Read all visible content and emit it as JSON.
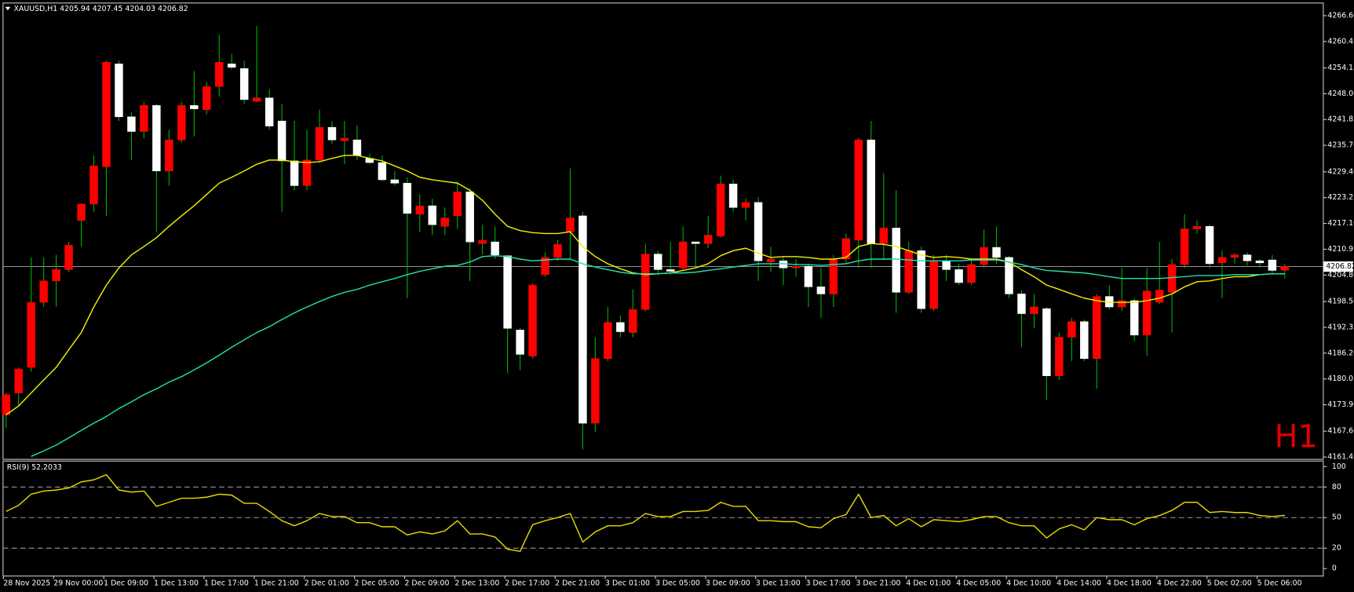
{
  "chart_data": [
    {
      "type": "candlestick",
      "title": "XAUUSD,H1  4205.94 4207.45 4204.03 4206.82",
      "timeframe_label": "H1",
      "categories": [
        "28 Nov 2025",
        null,
        null,
        null,
        "29 Nov 00:00",
        null,
        null,
        null,
        "1 Dec 09:00",
        null,
        null,
        null,
        "1 Dec 13:00",
        null,
        null,
        null,
        "1 Dec 17:00",
        null,
        null,
        null,
        "1 Dec 21:00",
        null,
        null,
        null,
        "2 Dec 01:00",
        null,
        null,
        null,
        "2 Dec 05:00",
        null,
        null,
        null,
        "2 Dec 09:00",
        null,
        null,
        null,
        "2 Dec 13:00",
        null,
        null,
        null,
        "2 Dec 17:00",
        null,
        null,
        null,
        "2 Dec 21:00",
        null,
        null,
        null,
        "3 Dec 01:00",
        null,
        null,
        null,
        "3 Dec 05:00",
        null,
        null,
        null,
        "3 Dec 09:00",
        null,
        null,
        null,
        "3 Dec 13:00",
        null,
        null,
        null,
        "3 Dec 17:00",
        null,
        null,
        null,
        "3 Dec 21:00",
        null,
        null,
        null,
        "4 Dec 01:00",
        null,
        null,
        null,
        "4 Dec 05:00",
        null,
        null,
        null,
        "4 Dec 10:00",
        null,
        null,
        null,
        "4 Dec 14:00",
        null,
        null,
        null,
        "4 Dec 18:00",
        null,
        null,
        null,
        "4 Dec 22:00",
        null,
        null,
        null,
        "5 Dec 02:00",
        null,
        null,
        null,
        "5 Dec 06:00",
        null,
        null
      ],
      "open": [
        4171.5,
        4176.7,
        4182.8,
        4198.3,
        4203.4,
        4206.1,
        4217.8,
        4221.7,
        4230.6,
        4255.1,
        4242.5,
        4239.0,
        4245.2,
        4229.6,
        4237.0,
        4245.2,
        4244.2,
        4249.7,
        4255.1,
        4254.0,
        4246.2,
        4247.0,
        4241.5,
        4232.0,
        4226.1,
        4232.2,
        4240.0,
        4236.8,
        4237.0,
        4232.6,
        4231.6,
        4227.5,
        4226.7,
        4219.3,
        4221.3,
        4216.4,
        4218.9,
        4224.6,
        4212.3,
        4212.7,
        4209.4,
        4191.7,
        4185.5,
        4204.9,
        4209.0,
        4215.1,
        4218.9,
        4169.5,
        4184.9,
        4193.5,
        4191.1,
        4196.6,
        4209.8,
        4206.1,
        4206.5,
        4212.7,
        4212.3,
        4214.1,
        4226.5,
        4220.9,
        4222.1,
        4207.9,
        4208.2,
        4206.5,
        4206.9,
        4202.0,
        4200.3,
        4208.6,
        4213.1,
        4237.0,
        4212.3,
        4216.0,
        4200.7,
        4210.6,
        4196.8,
        4208.2,
        4206.1,
        4203.0,
        4207.3,
        4211.4,
        4209.0,
        4200.3,
        4195.6,
        4196.8,
        4180.8,
        4190.0,
        4193.7,
        4184.9,
        4199.7,
        4197.2,
        4198.7,
        4190.5,
        4198.3,
        4200.7,
        4207.3,
        4215.8,
        4216.4,
        4207.7,
        4209.0,
        4209.6,
        4208.2,
        4208.4,
        4205.94
      ],
      "high": [
        4176.7,
        4182.8,
        4209.0,
        4209.0,
        4209.6,
        4212.7,
        4221.9,
        4233.3,
        4255.9,
        4255.9,
        4243.5,
        4246.0,
        4245.6,
        4239.4,
        4246.0,
        4253.4,
        4250.8,
        4262.1,
        4257.5,
        4255.9,
        4264.1,
        4249.1,
        4245.6,
        4241.5,
        4239.4,
        4244.2,
        4241.5,
        4241.5,
        4240.5,
        4233.7,
        4233.3,
        4229.6,
        4228.1,
        4224.0,
        4223.0,
        4220.9,
        4227.1,
        4225.4,
        4216.8,
        4216.4,
        4209.4,
        4192.1,
        4202.8,
        4210.2,
        4213.1,
        4230.2,
        4219.9,
        4190.0,
        4197.2,
        4195.2,
        4201.4,
        4212.3,
        4210.6,
        4212.7,
        4216.4,
        4212.7,
        4218.9,
        4228.5,
        4227.5,
        4223.0,
        4223.4,
        4211.6,
        4209.2,
        4208.6,
        4207.5,
        4206.5,
        4209.6,
        4214.7,
        4237.4,
        4241.5,
        4229.1,
        4225.0,
        4212.7,
        4211.6,
        4209.6,
        4209.6,
        4207.5,
        4208.6,
        4215.6,
        4216.4,
        4209.4,
        4201.2,
        4200.3,
        4197.2,
        4191.1,
        4194.6,
        4194.2,
        4200.3,
        4202.4,
        4206.5,
        4199.3,
        4206.5,
        4212.7,
        4208.6,
        4219.3,
        4217.8,
        4216.8,
        4210.6,
        4210.0,
        4210.2,
        4208.6,
        4209.6,
        4207.45
      ],
      "low": [
        4168.4,
        4173.6,
        4181.8,
        4197.2,
        4197.2,
        4205.5,
        4211.6,
        4219.9,
        4218.9,
        4241.5,
        4232.2,
        4237.4,
        4215.1,
        4226.1,
        4236.3,
        4237.8,
        4243.1,
        4247.3,
        4253.8,
        4245.6,
        4246.0,
        4239.4,
        4219.9,
        4225.0,
        4225.0,
        4231.6,
        4236.1,
        4231.2,
        4232.2,
        4231.2,
        4227.1,
        4226.1,
        4199.3,
        4215.1,
        4214.3,
        4214.3,
        4215.8,
        4203.4,
        4209.6,
        4208.6,
        4181.4,
        4182.2,
        4184.9,
        4204.4,
        4208.2,
        4208.6,
        4163.3,
        4167.4,
        4184.3,
        4190.0,
        4190.0,
        4196.2,
        4204.9,
        4204.9,
        4206.1,
        4206.5,
        4211.2,
        4213.7,
        4219.9,
        4217.8,
        4203.4,
        4205.5,
        4202.4,
        4204.4,
        4197.2,
        4194.6,
        4197.2,
        4207.5,
        4206.5,
        4206.5,
        4208.6,
        4195.8,
        4200.3,
        4195.8,
        4196.2,
        4203.4,
        4202.4,
        4202.4,
        4206.5,
        4207.5,
        4199.3,
        4187.6,
        4192.1,
        4175.0,
        4179.8,
        4184.3,
        4184.3,
        4177.7,
        4196.6,
        4196.2,
        4189.0,
        4185.5,
        4197.9,
        4191.1,
        4206.5,
        4214.7,
        4206.5,
        4199.3,
        4207.5,
        4207.1,
        4206.5,
        4204.9,
        4204.03
      ],
      "close": [
        4176.3,
        4182.4,
        4198.3,
        4203.4,
        4206.1,
        4211.9,
        4221.7,
        4230.8,
        4255.5,
        4242.5,
        4239.0,
        4245.2,
        4229.6,
        4237.0,
        4245.2,
        4244.4,
        4249.7,
        4255.5,
        4254.3,
        4246.6,
        4247.0,
        4240.3,
        4232.0,
        4226.1,
        4232.2,
        4240.0,
        4237.0,
        4237.4,
        4233.3,
        4231.6,
        4227.5,
        4226.7,
        4219.5,
        4221.3,
        4216.8,
        4218.4,
        4224.6,
        4212.7,
        4213.1,
        4209.6,
        4192.1,
        4185.9,
        4202.4,
        4209.0,
        4212.1,
        4218.4,
        4169.5,
        4184.9,
        4193.5,
        4191.3,
        4196.6,
        4209.8,
        4206.1,
        4205.7,
        4212.7,
        4212.3,
        4214.3,
        4226.5,
        4220.9,
        4222.1,
        4208.2,
        4208.6,
        4206.5,
        4206.9,
        4202.0,
        4200.3,
        4208.6,
        4213.5,
        4237.0,
        4212.3,
        4216.0,
        4200.7,
        4210.6,
        4196.8,
        4208.2,
        4206.1,
        4203.0,
        4207.3,
        4211.4,
        4209.0,
        4200.3,
        4195.6,
        4197.2,
        4180.8,
        4190.0,
        4193.7,
        4184.9,
        4199.7,
        4197.2,
        4198.7,
        4190.5,
        4201.0,
        4201.2,
        4207.3,
        4215.8,
        4216.4,
        4207.5,
        4209.0,
        4209.6,
        4208.2,
        4207.7,
        4205.9,
        4206.82
      ],
      "up_color": "#ff0000",
      "down_color": "#ffffff",
      "wick_color": "#00b000",
      "overlays": [
        {
          "color": "#f0f000",
          "values": [
            4171.5,
            4173.6,
            4176.7,
            4179.8,
            4182.8,
            4187.0,
            4191.1,
            4197.2,
            4202.4,
            4206.5,
            4209.6,
            4211.6,
            4213.7,
            4216.4,
            4218.9,
            4221.3,
            4224.0,
            4226.7,
            4228.1,
            4229.6,
            4231.2,
            4232.2,
            4232.2,
            4231.8,
            4231.6,
            4231.8,
            4232.6,
            4233.3,
            4233.3,
            4232.6,
            4232.0,
            4230.8,
            4229.6,
            4228.1,
            4227.5,
            4227.1,
            4226.7,
            4225.0,
            4222.6,
            4219.3,
            4216.4,
            4215.4,
            4214.9,
            4214.7,
            4214.7,
            4215.1,
            4211.6,
            4209.2,
            4207.5,
            4206.3,
            4205.3,
            4204.9,
            4205.1,
            4205.3,
            4205.9,
            4206.5,
            4207.5,
            4209.4,
            4210.6,
            4211.2,
            4210.0,
            4209.0,
            4209.2,
            4209.2,
            4209.0,
            4208.6,
            4208.6,
            4209.0,
            4211.6,
            4212.3,
            4212.1,
            4211.6,
            4210.6,
            4209.6,
            4209.0,
            4209.2,
            4209.0,
            4208.6,
            4208.6,
            4208.6,
            4207.9,
            4206.1,
            4204.4,
            4202.4,
            4201.4,
            4200.3,
            4199.3,
            4198.7,
            4198.3,
            4198.3,
            4198.3,
            4198.7,
            4199.3,
            4200.3,
            4202.0,
            4203.2,
            4203.4,
            4204.0,
            4204.4,
            4204.4,
            4204.9,
            4205.1,
            4205.1
          ]
        },
        {
          "color": "#20e0b0",
          "values": [
            null,
            null,
            4161.6,
            4162.9,
            4164.3,
            4166.0,
            4167.8,
            4169.5,
            4171.1,
            4173.0,
            4174.6,
            4176.3,
            4177.7,
            4179.3,
            4180.6,
            4182.2,
            4183.9,
            4185.7,
            4187.6,
            4189.4,
            4191.1,
            4192.5,
            4194.2,
            4195.8,
            4197.2,
            4198.5,
            4199.7,
            4200.7,
            4201.4,
            4202.4,
            4203.2,
            4204.0,
            4204.9,
            4205.7,
            4206.3,
            4206.9,
            4207.1,
            4207.9,
            4209.2,
            4209.4,
            4209.2,
            4208.6,
            4208.2,
            4208.4,
            4208.6,
            4208.6,
            4207.5,
            4206.7,
            4206.1,
            4205.5,
            4205.1,
            4205.1,
            4205.1,
            4205.3,
            4205.3,
            4205.5,
            4205.9,
            4206.3,
            4206.7,
            4207.1,
            4207.5,
            4207.5,
            4207.5,
            4207.3,
            4207.3,
            4207.1,
            4207.3,
            4207.5,
            4208.2,
            4208.6,
            4208.6,
            4208.6,
            4208.4,
            4208.2,
            4208.2,
            4208.2,
            4208.2,
            4208.4,
            4208.4,
            4208.4,
            4207.9,
            4207.3,
            4206.5,
            4205.9,
            4205.7,
            4205.5,
            4205.3,
            4204.9,
            4204.4,
            4204.0,
            4204.0,
            4204.0,
            4204.0,
            4204.2,
            4204.4,
            4204.7,
            4204.7,
            4204.7,
            4204.9,
            4204.9,
            4204.9,
            4205.1,
            4205.1
          ]
        }
      ],
      "current_price": 4206.82,
      "current_price_color": "#a8a8a8",
      "ylim": [
        4161.0,
        4269.3
      ],
      "yticks": [
        {
          "value": 4266.6,
          "label": "4266.60"
        },
        {
          "value": 4260.45,
          "label": "4260.45"
        },
        {
          "value": 4254.15,
          "label": "4254.15"
        },
        {
          "value": 4248.0,
          "label": "4248.00"
        },
        {
          "value": 4241.85,
          "label": "4241.85"
        },
        {
          "value": 4235.7,
          "label": "4235.70"
        },
        {
          "value": 4229.4,
          "label": "4229.40"
        },
        {
          "value": 4223.25,
          "label": "4223.25"
        },
        {
          "value": 4217.1,
          "label": "4217.10"
        },
        {
          "value": 4210.95,
          "label": "4210.95"
        },
        {
          "value": 4204.8,
          "label": "4204.80"
        },
        {
          "value": 4198.5,
          "label": "4198.50"
        },
        {
          "value": 4192.35,
          "label": "4192.35"
        },
        {
          "value": 4186.2,
          "label": "4186.20"
        },
        {
          "value": 4180.05,
          "label": "4180.05"
        },
        {
          "value": 4173.9,
          "label": "4173.90"
        },
        {
          "value": 4167.6,
          "label": "4167.60"
        },
        {
          "value": 4161.45,
          "label": "4161.45"
        }
      ]
    },
    {
      "type": "line",
      "title": "RSI(9) 52.2033",
      "values": [
        56,
        62,
        73,
        76,
        77,
        79,
        85,
        87,
        92,
        77,
        75,
        76,
        61,
        65,
        69,
        69,
        70,
        73,
        72,
        64,
        64,
        56,
        47,
        42,
        47,
        54,
        51,
        51,
        45,
        45,
        41,
        41,
        33,
        36,
        34,
        37,
        47,
        34,
        34,
        31,
        19,
        17,
        43,
        47,
        50,
        54,
        26,
        36,
        42,
        42,
        45,
        54,
        51,
        51,
        56,
        56,
        57,
        65,
        61,
        61,
        47,
        47,
        46,
        46,
        41,
        40,
        49,
        53,
        73,
        50,
        52,
        42,
        49,
        41,
        48,
        47,
        46,
        48,
        51,
        51,
        45,
        42,
        42,
        30,
        39,
        43,
        38,
        50,
        48,
        48,
        43,
        49,
        52,
        57,
        65,
        65,
        55,
        56,
        55,
        55,
        52,
        51,
        52.2033
      ],
      "color": "#e8d800",
      "levels": [
        20,
        50,
        80
      ],
      "ylim": [
        -6,
        105
      ],
      "yticks": [
        0,
        20,
        50,
        80,
        100
      ]
    }
  ]
}
